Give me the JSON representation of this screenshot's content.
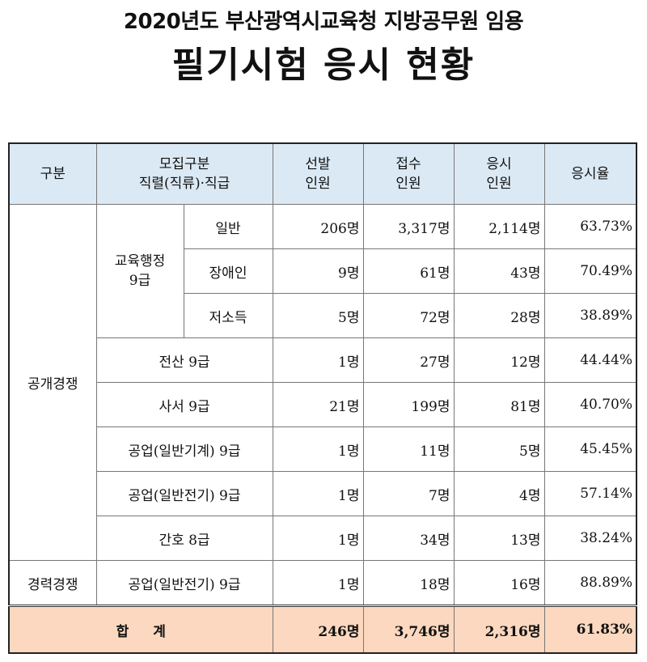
{
  "title_line1": "2020년도 부산광역시교육청 지방공무원 임용",
  "title_line2": "필기시험 응시 현황",
  "headers": {
    "col1": "구분",
    "col2_line1": "모집구분",
    "col2_line2": "직렬(직류)·직급",
    "col3_line1": "선발",
    "col3_line2": "인원",
    "col4_line1": "접수",
    "col4_line2": "인원",
    "col5_line1": "응시",
    "col5_line2": "인원",
    "col6": "응시율"
  },
  "groups": {
    "open": "공개경쟁",
    "career": "경력경쟁",
    "edu_admin": "교육행정\n9급"
  },
  "rows": [
    {
      "label": "일반",
      "selected": "206명",
      "applied": "3,317명",
      "taken": "2,114명",
      "rate": "63.73%"
    },
    {
      "label": "장애인",
      "selected": "9명",
      "applied": "61명",
      "taken": "43명",
      "rate": "70.49%"
    },
    {
      "label": "저소득",
      "selected": "5명",
      "applied": "72명",
      "taken": "28명",
      "rate": "38.89%"
    },
    {
      "label": "전산 9급",
      "selected": "1명",
      "applied": "27명",
      "taken": "12명",
      "rate": "44.44%"
    },
    {
      "label": "사서 9급",
      "selected": "21명",
      "applied": "199명",
      "taken": "81명",
      "rate": "40.70%"
    },
    {
      "label": "공업(일반기계) 9급",
      "selected": "1명",
      "applied": "11명",
      "taken": "5명",
      "rate": "45.45%"
    },
    {
      "label": "공업(일반전기) 9급",
      "selected": "1명",
      "applied": "7명",
      "taken": "4명",
      "rate": "57.14%"
    },
    {
      "label": "간호 8급",
      "selected": "1명",
      "applied": "34명",
      "taken": "13명",
      "rate": "38.24%"
    },
    {
      "label": "공업(일반전기) 9급",
      "selected": "1명",
      "applied": "18명",
      "taken": "16명",
      "rate": "88.89%"
    }
  ],
  "total": {
    "label": "합 계",
    "selected": "246명",
    "applied": "3,746명",
    "taken": "2,316명",
    "rate": "61.83%"
  }
}
